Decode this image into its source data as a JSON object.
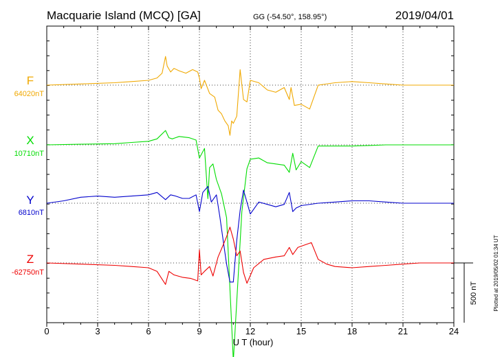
{
  "header": {
    "station": "Macquarie Island (MCQ)  [GA]",
    "coords": "GG (-54.50°, 158.95°)",
    "date": "2019/04/01"
  },
  "xlabel": "U T (hour)",
  "scale_label": "500 nT",
  "plotted_note": "Plotted at 2019/05/02 01:34  UT",
  "colors": {
    "F": "#f0a800",
    "X": "#00dd00",
    "Y": "#0000cc",
    "Z": "#ee0000"
  },
  "chart_data": {
    "type": "line",
    "x_range": [
      0,
      24
    ],
    "x_ticks": [
      0,
      3,
      6,
      9,
      12,
      15,
      18,
      21,
      24
    ],
    "grid": true,
    "scale_bar_nT": 500,
    "series": [
      {
        "name": "F",
        "baseline_label": "64020nT",
        "baseline": 64020,
        "x": [
          0,
          2,
          4,
          5,
          6,
          6.5,
          6.8,
          7.0,
          7.1,
          7.3,
          7.5,
          7.8,
          8.2,
          8.6,
          8.9,
          9.0,
          9.1,
          9.3,
          9.6,
          9.9,
          10.1,
          10.3,
          10.5,
          10.7,
          10.8,
          10.9,
          11.0,
          11.2,
          11.4,
          11.6,
          11.8,
          12.0,
          12.5,
          13.0,
          13.5,
          14.0,
          14.3,
          14.4,
          14.6,
          15.0,
          15.5,
          16.0,
          17,
          18,
          19,
          20,
          21,
          22,
          23,
          24
        ],
        "y": [
          64020,
          64030,
          64040,
          64050,
          64060,
          64080,
          64120,
          64260,
          64180,
          64130,
          64160,
          64140,
          64120,
          64150,
          64130,
          64080,
          63990,
          64060,
          63950,
          63920,
          63810,
          63780,
          63720,
          63680,
          63600,
          63720,
          63700,
          63760,
          64150,
          63900,
          63880,
          64060,
          64040,
          63980,
          63960,
          64000,
          63900,
          64000,
          63850,
          63860,
          63820,
          64020,
          64040,
          64050,
          64040,
          64030,
          64020,
          64020,
          64020,
          64020
        ]
      },
      {
        "name": "X",
        "baseline_label": "10710nT",
        "baseline": 10710,
        "x": [
          0,
          2,
          4,
          5,
          6,
          6.5,
          7.0,
          7.2,
          7.4,
          7.8,
          8.4,
          8.8,
          9.0,
          9.3,
          9.5,
          9.6,
          9.8,
          10.0,
          10.3,
          10.6,
          10.9,
          11.0,
          11.2,
          11.5,
          11.8,
          12.0,
          12.5,
          13.0,
          13.5,
          14.0,
          14.3,
          14.5,
          14.7,
          15.0,
          15.5,
          16.0,
          17,
          18,
          19,
          20,
          21,
          22,
          23,
          24
        ],
        "y": [
          10710,
          10715,
          10720,
          10730,
          10740,
          10760,
          10830,
          10770,
          10760,
          10780,
          10770,
          10750,
          10600,
          10680,
          10260,
          10520,
          10550,
          10420,
          10300,
          10100,
          9200,
          8900,
          9400,
          10150,
          10510,
          10590,
          10600,
          10560,
          10550,
          10540,
          10480,
          10640,
          10500,
          10570,
          10520,
          10700,
          10700,
          10700,
          10705,
          10710,
          10710,
          10710,
          10710,
          10710
        ]
      },
      {
        "name": "Y",
        "baseline_label": "6810nT",
        "baseline": 6810,
        "x": [
          0,
          1,
          2,
          3,
          4,
          5,
          6,
          6.5,
          7.0,
          7.3,
          7.6,
          8.0,
          8.4,
          8.8,
          9.0,
          9.2,
          9.5,
          9.7,
          10.0,
          10.2,
          10.4,
          10.6,
          10.8,
          11.0,
          11.2,
          11.4,
          11.6,
          12.0,
          12.5,
          13.0,
          13.5,
          14.0,
          14.3,
          14.5,
          14.7,
          15.0,
          16,
          17,
          18,
          19,
          20,
          21,
          22,
          23,
          24
        ],
        "y": [
          6810,
          6830,
          6860,
          6870,
          6860,
          6870,
          6880,
          6900,
          6840,
          6880,
          6870,
          6850,
          6850,
          6880,
          6740,
          6900,
          6950,
          6820,
          6880,
          6700,
          6500,
          6300,
          6150,
          6150,
          6500,
          6750,
          6920,
          6720,
          6820,
          6800,
          6780,
          6800,
          6900,
          6740,
          6770,
          6790,
          6810,
          6820,
          6830,
          6830,
          6820,
          6810,
          6810,
          6810,
          6810
        ]
      },
      {
        "name": "Z",
        "baseline_label": "-62750nT",
        "baseline": -62750,
        "x": [
          0,
          2,
          4,
          5,
          6,
          6.5,
          7.0,
          7.2,
          7.5,
          8.0,
          8.5,
          8.9,
          9.0,
          9.1,
          9.3,
          9.6,
          9.8,
          10.1,
          10.4,
          10.6,
          10.8,
          11.0,
          11.2,
          11.4,
          11.6,
          11.8,
          12.2,
          12.8,
          13.5,
          14.0,
          14.3,
          14.5,
          14.8,
          15.2,
          15.6,
          16.0,
          16.5,
          17,
          18,
          19,
          20,
          21,
          22,
          23,
          24
        ],
        "y": [
          -62750,
          -62760,
          -62770,
          -62780,
          -62790,
          -62820,
          -62930,
          -62820,
          -62850,
          -62870,
          -62880,
          -62900,
          -62640,
          -62850,
          -62820,
          -62780,
          -62860,
          -62700,
          -62600,
          -62530,
          -62450,
          -62550,
          -62690,
          -62650,
          -62830,
          -62920,
          -62790,
          -62720,
          -62700,
          -62690,
          -62620,
          -62680,
          -62620,
          -62600,
          -62580,
          -62720,
          -62760,
          -62780,
          -62790,
          -62780,
          -62770,
          -62760,
          -62750,
          -62750,
          -62750
        ]
      }
    ]
  }
}
